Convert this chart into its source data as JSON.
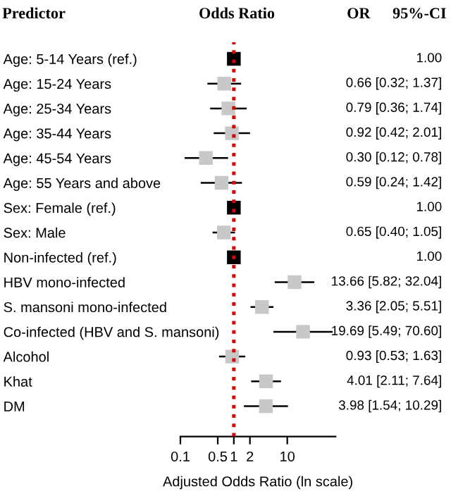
{
  "chart_data": {
    "type": "scatter",
    "orientation": "horizontal",
    "title": "Odds Ratio",
    "xlabel": "Adjusted Odds Ratio (ln scale)",
    "annotations": [
      "Predictor",
      "OR",
      "95%-CI"
    ],
    "categories": [
      "Age: 5-14 Years (ref.)",
      "Age: 15-24 Years",
      "Age: 25-34 Years",
      "Age: 35-44 Years",
      "Age: 45-54 Years",
      "Age: 55 Years and above",
      "Sex: Female (ref.)",
      "Sex: Male",
      "Non-infected (ref.)",
      "HBV mono-infected",
      "S. mansoni mono-infected",
      "Co-infected (HBV and S. mansoni)",
      "Alcohol",
      "Khat",
      "DM"
    ],
    "values": [
      1.0,
      0.66,
      0.79,
      0.92,
      0.3,
      0.59,
      1.0,
      0.65,
      1.0,
      13.66,
      3.36,
      19.69,
      0.93,
      4.01,
      3.98
    ],
    "value_labels": [
      "1.00",
      "0.66 [0.32; 1.37]",
      "0.79 [0.36; 1.74]",
      "0.92 [0.42; 2.01]",
      "0.30 [0.12; 0.78]",
      "0.59 [0.24; 1.42]",
      "1.00",
      "0.65 [0.40; 1.05]",
      "1.00",
      "13.66 [5.82; 32.04]",
      "3.36 [2.05; 5.51]",
      "19.69 [5.49; 70.60]",
      "0.93 [0.53; 1.63]",
      "4.01 [2.11; 7.64]",
      "3.98 [1.54; 10.29]"
    ],
    "errors": [
      null,
      [
        0.32,
        1.37
      ],
      [
        0.36,
        1.74
      ],
      [
        0.42,
        2.01
      ],
      [
        0.12,
        0.78
      ],
      [
        0.24,
        1.42
      ],
      null,
      [
        0.4,
        1.05
      ],
      null,
      [
        5.82,
        32.04
      ],
      [
        2.05,
        5.51
      ],
      [
        5.49,
        70.6
      ],
      [
        0.53,
        1.63
      ],
      [
        2.11,
        7.64
      ],
      [
        1.54,
        10.29
      ]
    ],
    "colors": [
      "#000000",
      "#c8c8c8",
      "#c8c8c8",
      "#c8c8c8",
      "#c8c8c8",
      "#c8c8c8",
      "#000000",
      "#c8c8c8",
      "#000000",
      "#c8c8c8",
      "#c8c8c8",
      "#c8c8c8",
      "#c8c8c8",
      "#c8c8c8",
      "#c8c8c8"
    ],
    "log": "x",
    "xlim": [
      0.1,
      80
    ],
    "xticks": [
      0.1,
      0.5,
      1,
      2,
      10
    ],
    "ref_lines": [
      {
        "axis": "x",
        "value": 1,
        "color": "#e00000",
        "line_style": "dotted"
      }
    ],
    "marker": "square",
    "grid": false,
    "legend": false
  }
}
